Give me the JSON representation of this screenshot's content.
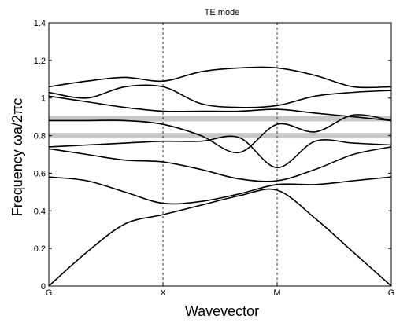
{
  "chart_data": {
    "type": "line",
    "title": "TE mode",
    "xlabel": "Wavevector",
    "ylabel": "Frequency ωa/2πc",
    "ylim": [
      0,
      1.4
    ],
    "y_ticks": [
      "0",
      "0.2",
      "0.4",
      "0.6",
      "0.8",
      "1",
      "1.2",
      "1.4"
    ],
    "x_ticks": [
      "G",
      "X",
      "M",
      "G"
    ],
    "x": [
      0,
      0.25,
      0.5,
      0.75,
      1,
      1.25,
      1.5,
      1.75,
      2,
      2.25,
      2.5,
      2.75,
      3
    ],
    "grid": false,
    "colors": {
      "bands": "#000000",
      "gap": "#c8c8c8",
      "symmetry_lines": "#000000"
    },
    "gaps": [
      {
        "y": 0.8
      },
      {
        "y": 0.89
      }
    ],
    "series": [
      {
        "values": [
          0.0,
          0.18,
          0.33,
          0.38,
          0.43,
          0.48,
          0.51,
          0.36,
          0.18,
          0.0,
          null,
          null,
          null
        ]
      },
      {
        "values": [
          0.58,
          0.56,
          0.5,
          0.44,
          0.45,
          0.49,
          0.54,
          0.54,
          0.56,
          0.58,
          null,
          null,
          null
        ]
      },
      {
        "values": [
          0.73,
          0.7,
          0.67,
          0.66,
          0.62,
          0.57,
          0.56,
          0.62,
          0.7,
          0.74,
          null,
          null,
          null
        ]
      },
      {
        "values": [
          0.74,
          0.75,
          0.76,
          0.77,
          0.77,
          0.79,
          0.63,
          0.77,
          0.76,
          0.75,
          null,
          null,
          null
        ]
      },
      {
        "values": [
          0.88,
          0.88,
          0.88,
          0.86,
          0.8,
          0.71,
          0.86,
          0.82,
          0.91,
          0.88,
          null,
          null,
          null
        ]
      },
      {
        "values": [
          1.01,
          0.98,
          0.95,
          0.93,
          0.93,
          0.93,
          0.94,
          0.92,
          0.9,
          0.88,
          null,
          null,
          null
        ]
      },
      {
        "values": [
          1.03,
          1.0,
          1.06,
          1.06,
          0.97,
          0.95,
          0.96,
          1.01,
          1.03,
          1.04,
          null,
          null,
          null
        ]
      },
      {
        "values": [
          1.06,
          1.09,
          1.11,
          1.09,
          1.14,
          1.16,
          1.16,
          1.12,
          1.06,
          1.06,
          null,
          null,
          null
        ]
      }
    ]
  }
}
